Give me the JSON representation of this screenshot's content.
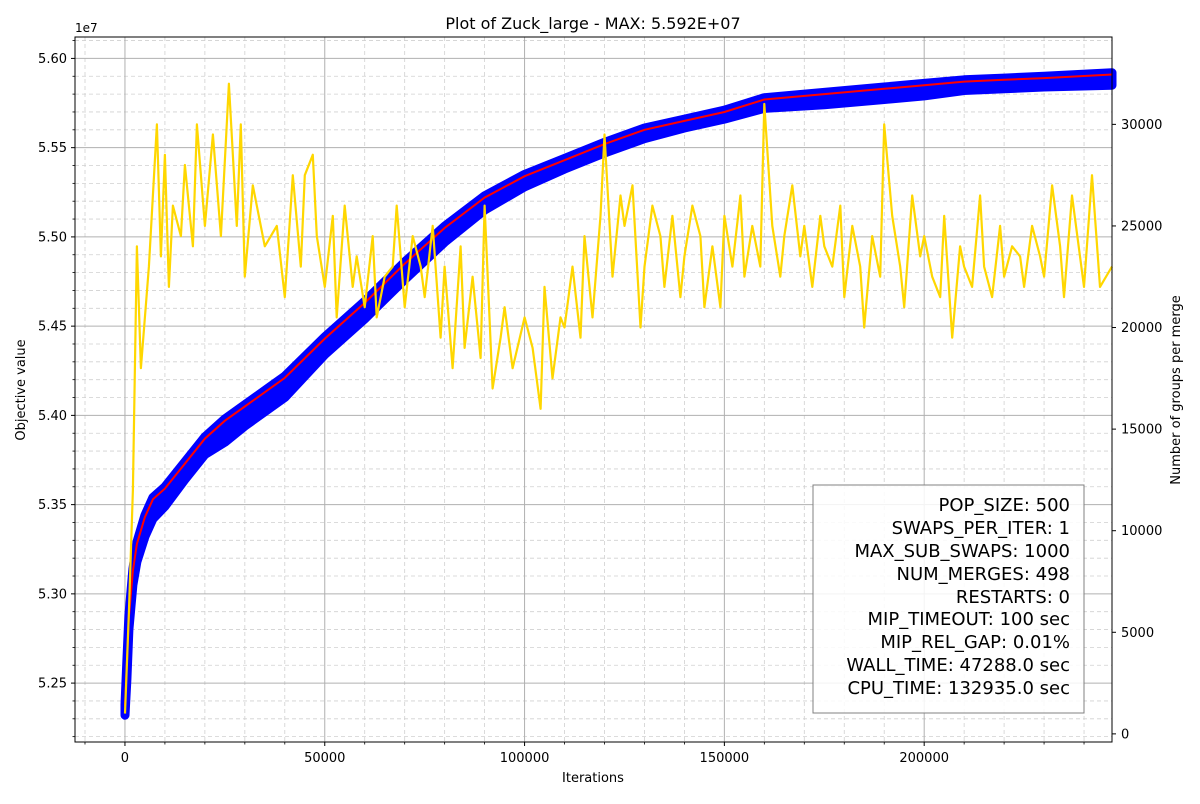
{
  "chart_data": {
    "type": "line",
    "title": "Plot of Zuck_large - MAX: 5.592E+07",
    "xlabel": "Iterations",
    "ylabel": "Objective value",
    "y2label": "Number of groups per merge",
    "y_offset_label": "1e7",
    "xlim": [
      -12500,
      247000
    ],
    "ylim": [
      52170000,
      56120000
    ],
    "y2lim": [
      -400,
      34300
    ],
    "x_ticks": [
      0,
      50000,
      100000,
      150000,
      200000
    ],
    "x_tick_labels": [
      "0",
      "50000",
      "100000",
      "150000",
      "200000"
    ],
    "y_ticks": [
      52500000,
      53000000,
      53500000,
      54000000,
      54500000,
      55000000,
      55500000,
      56000000
    ],
    "y_tick_labels": [
      "5.25",
      "5.30",
      "5.35",
      "5.40",
      "5.45",
      "5.50",
      "5.55",
      "5.60"
    ],
    "y2_ticks": [
      0,
      5000,
      10000,
      15000,
      20000,
      25000,
      30000
    ],
    "y2_tick_labels": [
      "0",
      "5000",
      "10000",
      "15000",
      "20000",
      "25000",
      "30000"
    ],
    "grid": true,
    "series": [
      {
        "color": "#0000ff",
        "style": "band of markers (population objective values)",
        "axis": "left",
        "x": [
          0,
          500,
          1000,
          2000,
          3000,
          5000,
          7000,
          10000,
          15000,
          20000,
          25000,
          30000,
          40000,
          50000,
          60000,
          70000,
          80000,
          90000,
          100000,
          110000,
          120000,
          130000,
          140000,
          150000,
          160000,
          175000,
          190000,
          200000,
          210000,
          220000,
          230000,
          247000
        ],
        "upper": [
          52380000,
          52630000,
          52880000,
          53140000,
          53290000,
          53440000,
          53540000,
          53600000,
          53740000,
          53880000,
          53980000,
          54060000,
          54220000,
          54440000,
          54640000,
          54860000,
          55060000,
          55230000,
          55350000,
          55440000,
          55530000,
          55610000,
          55660000,
          55710000,
          55780000,
          55810000,
          55840000,
          55860000,
          55880000,
          55890000,
          55900000,
          55920000
        ],
        "lower": [
          52320000,
          52520000,
          52800000,
          53050000,
          53180000,
          53320000,
          53420000,
          53490000,
          53640000,
          53780000,
          53850000,
          53940000,
          54100000,
          54340000,
          54540000,
          54760000,
          54970000,
          55150000,
          55280000,
          55380000,
          55470000,
          55550000,
          55610000,
          55660000,
          55720000,
          55740000,
          55770000,
          55790000,
          55820000,
          55830000,
          55840000,
          55850000
        ]
      },
      {
        "color": "#ff0000",
        "style": "line (best objective value)",
        "axis": "left",
        "x": [
          0,
          500,
          1000,
          2000,
          3000,
          5000,
          7000,
          10000,
          15000,
          20000,
          25000,
          30000,
          40000,
          50000,
          60000,
          70000,
          80000,
          90000,
          100000,
          110000,
          120000,
          130000,
          140000,
          150000,
          160000,
          175000,
          190000,
          200000,
          210000,
          220000,
          230000,
          247000
        ],
        "y": [
          52370000,
          52620000,
          52870000,
          53130000,
          53280000,
          53430000,
          53530000,
          53590000,
          53730000,
          53870000,
          53970000,
          54050000,
          54210000,
          54430000,
          54630000,
          54850000,
          55050000,
          55220000,
          55340000,
          55430000,
          55520000,
          55600000,
          55650000,
          55700000,
          55770000,
          55800000,
          55830000,
          55850000,
          55870000,
          55880000,
          55890000,
          55910000
        ]
      },
      {
        "color": "#ffd700",
        "style": "line (groups per merge)",
        "axis": "right",
        "x": [
          0,
          1000,
          2000,
          3000,
          4000,
          6000,
          8000,
          9000,
          10000,
          11000,
          12000,
          14000,
          15000,
          17000,
          18000,
          20000,
          22000,
          24000,
          26000,
          28000,
          29000,
          30000,
          32000,
          35000,
          38000,
          40000,
          42000,
          44000,
          45000,
          47000,
          48000,
          50000,
          52000,
          53000,
          55000,
          57000,
          58000,
          60000,
          62000,
          63000,
          65000,
          67000,
          68000,
          70000,
          72000,
          74000,
          75000,
          77000,
          79000,
          80000,
          82000,
          84000,
          85000,
          87000,
          89000,
          90000,
          92000,
          94000,
          95000,
          97000,
          100000,
          102000,
          104000,
          105000,
          107000,
          109000,
          110000,
          112000,
          114000,
          115000,
          117000,
          119000,
          120000,
          122000,
          124000,
          125000,
          127000,
          129000,
          130000,
          132000,
          134000,
          135000,
          137000,
          139000,
          140000,
          142000,
          144000,
          145000,
          147000,
          149000,
          150000,
          152000,
          154000,
          155000,
          157000,
          159000,
          160000,
          162000,
          164000,
          165000,
          167000,
          169000,
          170000,
          172000,
          174000,
          175000,
          177000,
          179000,
          180000,
          182000,
          184000,
          185000,
          187000,
          189000,
          190000,
          192000,
          194000,
          195000,
          197000,
          199000,
          200000,
          202000,
          204000,
          205000,
          207000,
          209000,
          210000,
          212000,
          214000,
          215000,
          217000,
          219000,
          220000,
          222000,
          224000,
          225000,
          227000,
          229000,
          230000,
          232000,
          234000,
          235000,
          237000,
          239000,
          240000,
          242000,
          244000,
          247000
        ],
        "y": [
          1000,
          6000,
          12000,
          24000,
          18000,
          23000,
          30000,
          23500,
          28500,
          22000,
          26000,
          24500,
          28000,
          24000,
          30000,
          25000,
          29500,
          24500,
          32000,
          25000,
          30000,
          22500,
          27000,
          24000,
          25000,
          21500,
          27500,
          23000,
          27500,
          28500,
          24500,
          22000,
          25500,
          20500,
          26000,
          22000,
          23500,
          21000,
          24500,
          20500,
          22500,
          23000,
          26000,
          21000,
          24500,
          23000,
          21500,
          25000,
          19500,
          23000,
          18000,
          24000,
          19000,
          22500,
          18500,
          26000,
          17000,
          19500,
          21000,
          18000,
          20500,
          19000,
          16000,
          22000,
          17500,
          20500,
          20000,
          23000,
          19500,
          24500,
          20500,
          25500,
          29500,
          22500,
          26500,
          25000,
          27000,
          20000,
          23000,
          26000,
          24500,
          22000,
          25500,
          21500,
          23500,
          26000,
          24500,
          21000,
          24000,
          21000,
          25500,
          23000,
          26500,
          22500,
          25000,
          23000,
          31000,
          25000,
          22500,
          24500,
          27000,
          23500,
          25000,
          22000,
          25500,
          24000,
          23000,
          26000,
          21500,
          25000,
          23000,
          20000,
          24500,
          22500,
          30000,
          25500,
          23000,
          21000,
          26500,
          23500,
          24500,
          22500,
          21500,
          25500,
          19500,
          24000,
          23000,
          22000,
          26500,
          23000,
          21500,
          25000,
          22500,
          24000,
          23500,
          22000,
          25000,
          23500,
          22500,
          27000,
          24000,
          21500,
          26500,
          23500,
          22000,
          27500,
          22000,
          23000
        ]
      }
    ],
    "annotation_lines": [
      "POP_SIZE: 500",
      "SWAPS_PER_ITER: 1",
      "MAX_SUB_SWAPS: 1000",
      "NUM_MERGES: 498",
      "RESTARTS: 0",
      "MIP_TIMEOUT: 100 sec",
      "MIP_REL_GAP: 0.01%",
      "WALL_TIME: 47288.0 sec",
      "CPU_TIME: 132935.0 sec"
    ]
  }
}
